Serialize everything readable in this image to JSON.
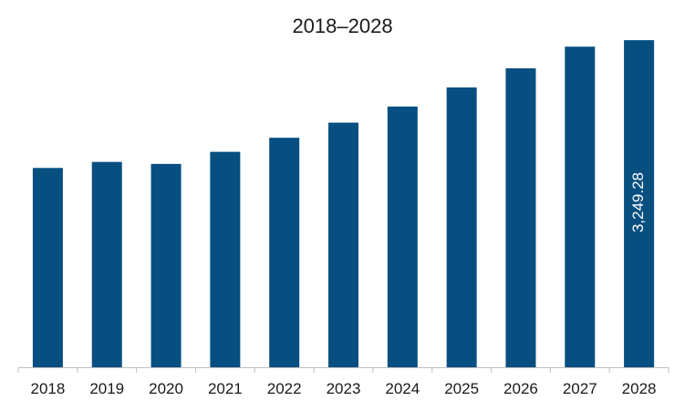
{
  "chart_data": {
    "type": "bar",
    "title": "2018–2028",
    "xlabel": "",
    "ylabel": "",
    "categories": [
      "2018",
      "2019",
      "2020",
      "2021",
      "2022",
      "2023",
      "2024",
      "2025",
      "2026",
      "2027",
      "2028"
    ],
    "values": [
      1980,
      2040,
      2020,
      2140,
      2280,
      2430,
      2590,
      2780,
      2970,
      3185,
      3249.28
    ],
    "data_labels": [
      {
        "category": "2028",
        "text": "3,249.28"
      }
    ],
    "ylim": [
      0,
      3250
    ],
    "grid": false,
    "legend": "none",
    "bar_color": "#074f80",
    "axis_color": "#bfbfbf"
  }
}
